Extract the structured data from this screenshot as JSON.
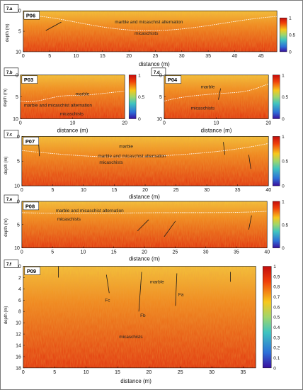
{
  "panels": [
    {
      "key": "a",
      "tag": "7.a",
      "id": "P06",
      "ylabel": "depth (m)",
      "xlabel": "distance (m)",
      "xticks": [
        "0",
        "5",
        "10",
        "15",
        "20",
        "25",
        "30",
        "35",
        "40",
        "45"
      ],
      "yticks": [
        "0",
        "5",
        "10"
      ],
      "colorbar_ticks": [
        "1",
        "0.5",
        "0"
      ],
      "annotations": [
        "marble and micaschist alternation",
        "micaschists"
      ]
    },
    {
      "key": "b",
      "tag": "7.b",
      "id": "P03",
      "ylabel": "depth (m)",
      "xlabel": "distance (m)",
      "xticks": [
        "0",
        "10",
        "20"
      ],
      "yticks": [
        "0",
        "5",
        "10"
      ],
      "colorbar_ticks": [
        "1",
        "0.5",
        "0"
      ],
      "annotations": [
        "marble",
        "marble and micaschist alternation",
        "micaschists"
      ]
    },
    {
      "key": "d",
      "tag": "7.d",
      "id": "P04",
      "ylabel": "",
      "xlabel": "distance (m)",
      "xticks": [
        "0",
        "10",
        "20"
      ],
      "yticks": [
        "0",
        "5",
        "10"
      ],
      "colorbar_ticks": [
        "1",
        "0.5",
        "0"
      ],
      "annotations": [
        "marble",
        "micaschists"
      ]
    },
    {
      "key": "c",
      "tag": "7.c",
      "id": "P07",
      "ylabel": "depth (m)",
      "xlabel": "distance (m)",
      "xticks": [
        "0",
        "5",
        "10",
        "15",
        "20",
        "25",
        "30",
        "35",
        "40"
      ],
      "yticks": [
        "0",
        "5",
        "10"
      ],
      "colorbar_ticks": [
        "1",
        "0.5",
        "0"
      ],
      "annotations": [
        "marble",
        "marble and micaschist alternation",
        "micaschists"
      ]
    },
    {
      "key": "e",
      "tag": "7.e",
      "id": "P08",
      "ylabel": "depth (m)",
      "xlabel": "distance (m)",
      "xticks": [
        "0",
        "5",
        "10",
        "15",
        "20",
        "25",
        "30",
        "35",
        "40"
      ],
      "yticks": [
        "0",
        "5",
        "10"
      ],
      "colorbar_ticks": [
        "1",
        "0.5",
        "0"
      ],
      "annotations": [
        "marble and micaschist alternation",
        "micaschists"
      ]
    },
    {
      "key": "f",
      "tag": "7.f",
      "id": "P09",
      "ylabel": "depth (m)",
      "xlabel": "distance (m)",
      "xticks": [
        "0",
        "5",
        "10",
        "15",
        "20",
        "25",
        "30",
        "35"
      ],
      "yticks": [
        "0",
        "2",
        "4",
        "6",
        "8",
        "10",
        "12",
        "14",
        "16",
        "18"
      ],
      "colorbar_ticks": [
        "1",
        "0.9",
        "0.8",
        "0.7",
        "0.6",
        "0.5",
        "0.4",
        "0.3",
        "0.2",
        "0.1",
        "0"
      ],
      "annotations": [
        "marble",
        "micaschists",
        "Fa",
        "Fb",
        "Fc"
      ]
    }
  ],
  "colors": {
    "low": "#3a0f9e",
    "mid": "#3fc4c0",
    "high": "#e8250e",
    "boundary": "#ffffff",
    "fault": "#1a1a1a"
  }
}
